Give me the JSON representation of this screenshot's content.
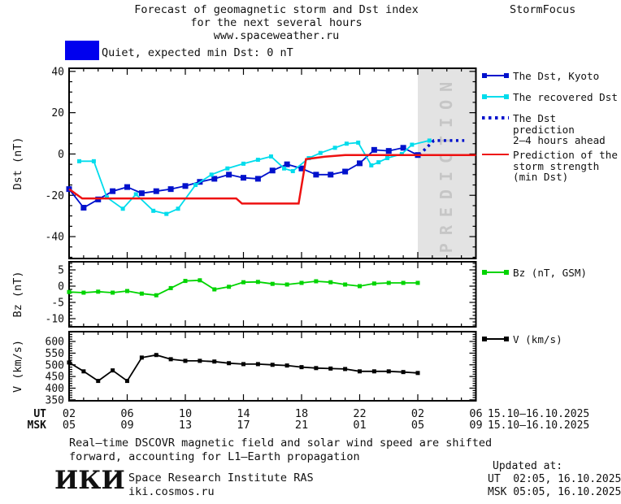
{
  "header": {
    "title_line1": "Forecast of geomagnetic storm and Dst index",
    "title_line2": "for the next several hours",
    "title_line3": "www.spaceweather.ru",
    "brand": "StormFocus"
  },
  "status": {
    "swatch_color": "#0000ee",
    "label": "Quiet, expected min Dst: 0 nT"
  },
  "prediction_band": {
    "label": "PREDICTION",
    "color": "#e3e3e3",
    "text_color": "#c6c6c6",
    "start_hour": 26
  },
  "legends": {
    "dst": [
      {
        "label": "The Dst, Kyoto",
        "color": "#0011cc"
      },
      {
        "label": "The recovered Dst",
        "color": "#00dcec"
      },
      {
        "label": "The Dst prediction",
        "label2": "2–4 hours ahead",
        "color": "#0011cc"
      },
      {
        "label": "Prediction of the",
        "label2": "storm strength",
        "label3": "(min Dst)",
        "color": "#ee1111"
      }
    ],
    "bz": {
      "label": "Bz (nT, GSM)",
      "color": "#00d400"
    },
    "v": {
      "label": "V (km/s)",
      "color": "#000000"
    }
  },
  "xaxis": {
    "ut_row_label": "UT",
    "msk_row_label": "MSK",
    "tick_hours": [
      2,
      6,
      10,
      14,
      18,
      22,
      26,
      30
    ],
    "ut_labels": [
      "02",
      "06",
      "10",
      "14",
      "18",
      "22",
      "02",
      "06"
    ],
    "msk_labels": [
      "05",
      "09",
      "13",
      "17",
      "21",
      "01",
      "05",
      "09"
    ],
    "ut_date": "15.10–16.10.2025",
    "msk_date": "15.10–16.10.2025"
  },
  "chart_data": [
    {
      "type": "line",
      "name": "dst-panel",
      "ylabel": "Dst (nT)",
      "xlim": [
        2,
        30
      ],
      "ylim": [
        -50.6,
        41.5
      ],
      "yticks": [
        40,
        20,
        0,
        -20,
        -40
      ],
      "y_minor_step": 5,
      "x_major_step": 4,
      "x_minor_step": 1,
      "has_prediction_band": true,
      "series": [
        {
          "name": "The Dst, Kyoto",
          "color": "#0011cc",
          "marker": "square",
          "marker_size": 7,
          "width": 1.8,
          "x": [
            2,
            3,
            4,
            5,
            6,
            7,
            8,
            9,
            10,
            11,
            12,
            13,
            14,
            15,
            16,
            17,
            18,
            19,
            20,
            21,
            22,
            23,
            24,
            25,
            26
          ],
          "y": [
            -17,
            -26,
            -22,
            -18,
            -16,
            -19,
            -18,
            -17,
            -15.5,
            -13.5,
            -12,
            -10,
            -11.5,
            -12,
            -8,
            -5,
            -7,
            -10,
            -10,
            -8.5,
            -4.5,
            2,
            1.5,
            3,
            -0.5
          ]
        },
        {
          "name": "The recovered Dst",
          "color": "#00dcec",
          "marker": "square",
          "marker_size": 5,
          "width": 1.8,
          "x": [
            2.7,
            3.7,
            4.6,
            5.7,
            6.6,
            7.8,
            8.7,
            9.5,
            10.7,
            11.8,
            12.9,
            14,
            15,
            15.9,
            16.8,
            17.4,
            18.5,
            19.3,
            20.3,
            21.1,
            21.9,
            22.8,
            23.3,
            23.9,
            24.9,
            25.6,
            26.8
          ],
          "y": [
            -3.5,
            -3.5,
            -21,
            -26.5,
            -19.5,
            -27.5,
            -29,
            -26.5,
            -15,
            -10,
            -7,
            -4.7,
            -2.8,
            -1.2,
            -7,
            -8.3,
            -2,
            0.5,
            3,
            5,
            5.5,
            -5.5,
            -4,
            -2,
            0,
            4.5,
            6.5
          ]
        },
        {
          "name": "The Dst prediction 2–4 hours ahead",
          "color": "#0011cc",
          "marker": "none",
          "width": 3.5,
          "dash": "3 4.5",
          "x": [
            26.1,
            27.1,
            29.2
          ],
          "y": [
            -0.5,
            6.5,
            6.5
          ]
        },
        {
          "name": "Prediction of the storm strength (min Dst)",
          "color": "#ee1111",
          "marker": "none",
          "width": 2.5,
          "x": [
            2,
            2.9,
            13.5,
            13.9,
            17.8,
            18.3,
            19.6,
            21,
            30
          ],
          "y": [
            -17,
            -21.5,
            -21.5,
            -24,
            -24,
            -2.5,
            -1.3,
            -0.5,
            -0.5
          ]
        }
      ]
    },
    {
      "type": "line",
      "name": "bz-panel",
      "ylabel": "Bz (nT)",
      "xlim": [
        2,
        30
      ],
      "ylim": [
        -12.5,
        7.5
      ],
      "yticks": [
        5,
        0,
        -5,
        -10
      ],
      "y_minor_step": 1,
      "x_major_step": 4,
      "x_minor_step": 1,
      "has_prediction_band": false,
      "series": [
        {
          "name": "Bz (nT, GSM)",
          "color": "#00d400",
          "marker": "square",
          "marker_size": 5,
          "width": 1.8,
          "x": [
            2,
            3,
            4,
            5,
            6,
            7,
            8,
            9,
            10,
            11,
            12,
            13,
            14,
            15,
            16,
            17,
            18,
            19,
            20,
            21,
            22,
            23,
            24,
            25,
            26
          ],
          "y": [
            -1.8,
            -2,
            -1.7,
            -2,
            -1.5,
            -2.3,
            -2.8,
            -0.6,
            1.6,
            1.8,
            -1,
            -0.2,
            1.2,
            1.3,
            0.7,
            0.5,
            1,
            1.5,
            1.2,
            0.5,
            0,
            0.8,
            1,
            1,
            1
          ]
        }
      ]
    },
    {
      "type": "line",
      "name": "v-panel",
      "ylabel": "V (km/s)",
      "xlim": [
        2,
        30
      ],
      "ylim": [
        346,
        642
      ],
      "yticks": [
        600,
        550,
        500,
        450,
        400,
        350
      ],
      "y_minor_step": 10,
      "x_major_step": 4,
      "x_minor_step": 1,
      "has_prediction_band": false,
      "series": [
        {
          "name": "V (km/s)",
          "color": "#000000",
          "marker": "square",
          "marker_size": 5,
          "width": 1.8,
          "x": [
            2,
            3,
            4,
            5,
            6,
            7,
            8,
            9,
            10,
            11,
            12,
            13,
            14,
            15,
            16,
            17,
            18,
            19,
            20,
            21,
            22,
            23,
            24,
            25,
            26
          ],
          "y": [
            510,
            472,
            431,
            476,
            431,
            531,
            542,
            524,
            517,
            517,
            514,
            507,
            503,
            503,
            500,
            497,
            490,
            486,
            484,
            482,
            472,
            472,
            472,
            469,
            465
          ]
        }
      ]
    }
  ],
  "footer": {
    "note_line1": "Real–time DSCOVR magnetic field and solar wind speed are shifted",
    "note_line2": "forward, accounting for L1–Earth propagation",
    "logo": "ИКИ",
    "institute_name": "Space Research Institute RAS",
    "institute_site": "iki.cosmos.ru",
    "updated_heading": "Updated at:",
    "updated_ut": "UT  02:05, 16.10.2025",
    "updated_msk": "MSK 05:05, 16.10.2025"
  }
}
